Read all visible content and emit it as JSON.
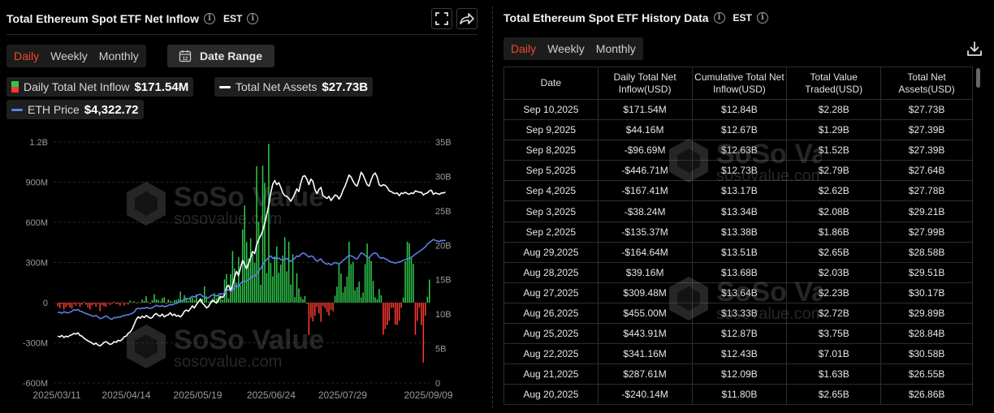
{
  "left_panel": {
    "title": "Total Ethereum Spot ETF Net Inflow",
    "timezone": "EST",
    "tabs": [
      {
        "label": "Daily",
        "active": true
      },
      {
        "label": "Weekly",
        "active": false
      },
      {
        "label": "Monthly",
        "active": false
      }
    ],
    "date_range_label": "Date Range",
    "calendar_day": "12",
    "legend": {
      "inflow_label": "Daily Total Net Inflow",
      "inflow_value": "$171.54M",
      "assets_label": "Total Net Assets",
      "assets_value": "$27.73B",
      "eth_label": "ETH Price",
      "eth_value": "$4,322.72"
    }
  },
  "watermark": {
    "brand": "SoSo Value",
    "url": "sosovalue.com"
  },
  "colors": {
    "positive": "#2ec84a",
    "negative": "#ff3b30",
    "assets_line": "#ffffff",
    "eth_line": "#5b7fe6",
    "accent": "#f0492d"
  },
  "chart_data": {
    "type": "bar",
    "title": "Total Ethereum Spot ETF Net Inflow",
    "left_axis": {
      "ticks": [
        "1.2B",
        "900M",
        "600M",
        "300M",
        "0",
        "-300M",
        "-600M"
      ],
      "range_m": [
        -600,
        1200
      ]
    },
    "right_axis": {
      "ticks": [
        "35B",
        "30B",
        "25B",
        "20B",
        "15B",
        "10B",
        "5B",
        "0"
      ],
      "range_b": [
        0,
        35
      ]
    },
    "x_ticks": [
      "2025/03/11",
      "2025/04/14",
      "2025/05/19",
      "2025/06/24",
      "2025/07/29",
      "2025/09/09"
    ],
    "start_date": "2025-03-11",
    "end_date": "2025-09-10",
    "series": [
      {
        "name": "Daily Total Net Inflow",
        "unit": "M USD",
        "values": [
          -28,
          -41,
          -12,
          -52,
          -34,
          -19,
          -38,
          -45,
          -11,
          -22,
          -8,
          -32,
          -15,
          4,
          -14,
          -36,
          -51,
          -21,
          -12,
          -31,
          -9,
          -63,
          -18,
          -26,
          -30,
          -5,
          -17,
          -8,
          6,
          -11,
          -12,
          -24,
          3,
          -21,
          -7,
          -14,
          16,
          3,
          10,
          -7,
          5,
          -3,
          22,
          14,
          48,
          7,
          -11,
          19,
          64,
          25,
          21,
          8,
          33,
          41,
          -9,
          24,
          13,
          6,
          18,
          20,
          27,
          83,
          10,
          56,
          30,
          13,
          44,
          36,
          18,
          62,
          14,
          19,
          31,
          122,
          47,
          8,
          15,
          30,
          71,
          35,
          61,
          46,
          23,
          174,
          214,
          31,
          212,
          386,
          256,
          149,
          340,
          127,
          546,
          726,
          453,
          332,
          481,
          362,
          297,
          1019,
          602,
          134,
          1024,
          895,
          221,
          1186,
          296,
          197,
          342,
          419,
          223,
          284,
          352,
          489,
          233,
          455,
          135,
          361,
          41,
          220,
          106,
          44,
          25,
          49,
          -11,
          -241,
          -112,
          -140,
          -98,
          -33,
          -81,
          -143,
          -26,
          -40,
          -71,
          -97,
          -53,
          -64,
          51,
          119,
          286,
          217,
          77,
          120,
          196,
          455,
          288,
          305,
          92,
          116,
          157,
          39,
          76,
          287,
          441,
          341,
          312,
          162,
          40,
          25,
          102,
          55,
          -240,
          -197,
          -167,
          -135,
          -39,
          -38,
          -164,
          -167,
          -135,
          -38,
          39,
          309,
          455,
          444,
          341,
          288,
          -240,
          -135,
          -38,
          -167,
          -447,
          -97,
          44,
          172
        ]
      },
      {
        "name": "Total Net Assets",
        "unit": "B USD",
        "values": [
          6.8,
          6.7,
          6.9,
          6.6,
          6.8,
          6.7,
          6.9,
          7.0,
          7.2,
          7.1,
          7.3,
          6.9,
          6.8,
          6.5,
          6.3,
          6.1,
          6.0,
          5.8,
          5.6,
          5.8,
          5.5,
          5.4,
          5.6,
          5.9,
          6.0,
          5.8,
          5.6,
          5.7,
          6.0,
          5.9,
          6.2,
          6.1,
          6.3,
          6.7,
          6.8,
          7.2,
          7.4,
          7.8,
          8.5,
          9.2,
          9.6,
          9.4,
          9.7,
          9.5,
          9.8,
          9.6,
          9.4,
          9.5,
          9.9,
          10.1,
          9.8,
          9.7,
          10.0,
          9.6,
          9.8,
          9.9,
          10.2,
          9.8,
          10.0,
          9.7,
          9.8,
          9.6,
          9.9,
          10.4,
          10.6,
          10.4,
          10.8,
          11.2,
          10.9,
          11.4,
          11.8,
          12.2,
          11.6,
          11.3,
          10.9,
          11.1,
          11.6,
          12.0,
          11.8,
          11.6,
          12.1,
          12.6,
          12.4,
          12.8,
          13.9,
          14.2,
          13.4,
          14.2,
          15.4,
          16.2,
          15.6,
          16.8,
          17.8,
          17.2,
          16.6,
          17.4,
          18.2,
          19.1,
          18.8,
          20.1,
          20.8,
          21.4,
          22.1,
          23.2,
          24.4,
          25.8,
          27.6,
          28.9,
          29.4,
          28.8,
          29.1,
          28.4,
          27.6,
          27.2,
          27.1,
          26.8,
          26.4,
          26.9,
          27.5,
          28.2,
          27.8,
          29.1,
          30.0,
          30.1,
          29.6,
          28.8,
          29.6,
          29.3,
          28.1,
          27.5,
          28.1,
          28.4,
          27.2,
          27.0,
          26.8,
          27.1,
          26.5,
          26.9,
          27.3,
          27.2,
          26.7,
          27.2,
          28.0,
          28.6,
          29.4,
          30.2,
          29.9,
          29.3,
          28.8,
          28.6,
          29.5,
          30.6,
          30.2,
          29.5,
          28.8,
          28.6,
          29.5,
          30.2,
          30.5,
          29.9,
          28.8,
          28.6,
          28.8,
          28.7,
          28.4,
          27.9,
          27.8,
          27.6,
          27.5,
          27.6,
          27.2,
          27.6,
          27.5,
          27.7,
          27.5,
          27.4,
          27.6,
          27.5,
          27.9,
          27.8,
          27.7,
          27.7,
          27.3,
          27.5,
          27.6,
          27.9,
          28.0,
          27.4,
          27.6,
          27.5,
          27.4,
          27.6,
          27.6,
          27.7
        ]
      },
      {
        "name": "ETH Price",
        "unit": "USD",
        "values": [
          1900,
          1920,
          1880,
          1930,
          1910,
          1890,
          1920,
          1950,
          2000,
          1980,
          2010,
          1950,
          1940,
          1900,
          1870,
          1850,
          1820,
          1800,
          1780,
          1810,
          1760,
          1700,
          1720,
          1760,
          1790,
          1750,
          1700,
          1680,
          1740,
          1730,
          1760,
          1750,
          1790,
          1800,
          1820,
          1830,
          1850,
          1880,
          1920,
          2020,
          2050,
          2030,
          2060,
          2040,
          2080,
          2060,
          2040,
          2070,
          2100,
          2150,
          2120,
          2110,
          2140,
          2100,
          2120,
          2140,
          2180,
          2160,
          2200,
          2210,
          2240,
          2280,
          2300,
          2350,
          2380,
          2360,
          2400,
          2450,
          2420,
          2470,
          2500,
          2520,
          2450,
          2420,
          2380,
          2400,
          2460,
          2500,
          2480,
          2460,
          2500,
          2540,
          2520,
          2560,
          2640,
          2680,
          2600,
          2660,
          2760,
          2800,
          2760,
          2880,
          2960,
          2940,
          2960,
          3000,
          3050,
          3140,
          3120,
          3200,
          3300,
          3380,
          3500,
          3600,
          3680,
          3750,
          3800,
          3720,
          3760,
          3700,
          3730,
          3680,
          3650,
          3700,
          3720,
          3650,
          3620,
          3680,
          3720,
          3800,
          3780,
          3850,
          3900,
          3880,
          3820,
          3760,
          3800,
          3780,
          3690,
          3620,
          3660,
          3700,
          3600,
          3560,
          3520,
          3550,
          3500,
          3540,
          3580,
          3560,
          3520,
          3580,
          3650,
          3700,
          3760,
          3820,
          3800,
          3780,
          3720,
          3700,
          3800,
          3900,
          3880,
          3820,
          3760,
          3740,
          3820,
          3880,
          3900,
          3860,
          3760,
          3720,
          3740,
          3700,
          3680,
          3620,
          3600,
          3580,
          3560,
          3580,
          3600,
          3620,
          3650,
          3680,
          3700,
          3720,
          3760,
          3800,
          3860,
          3900,
          3950,
          4000,
          4050,
          4100,
          4200,
          4250,
          4300,
          4350,
          4320,
          4300,
          4280,
          4320,
          4310,
          4323
        ]
      }
    ]
  },
  "right_panel": {
    "title": "Total Ethereum Spot ETF History Data",
    "timezone": "EST",
    "tabs": [
      {
        "label": "Daily",
        "active": true
      },
      {
        "label": "Weekly",
        "active": false
      },
      {
        "label": "Monthly",
        "active": false
      }
    ],
    "columns": [
      "Date",
      "Daily Total Net Inflow(USD)",
      "Cumulative Total Net Inflow(USD)",
      "Total Value Traded(USD)",
      "Total Net Assets(USD)"
    ],
    "rows": [
      [
        "Sep 10,2025",
        "$171.54M",
        "$12.84B",
        "$2.28B",
        "$27.73B"
      ],
      [
        "Sep 9,2025",
        "$44.16M",
        "$12.67B",
        "$1.29B",
        "$27.39B"
      ],
      [
        "Sep 8,2025",
        "-$96.69M",
        "$12.63B",
        "$1.52B",
        "$27.39B"
      ],
      [
        "Sep 5,2025",
        "-$446.71M",
        "$12.73B",
        "$2.79B",
        "$27.64B"
      ],
      [
        "Sep 4,2025",
        "-$167.41M",
        "$13.17B",
        "$2.62B",
        "$27.78B"
      ],
      [
        "Sep 3,2025",
        "-$38.24M",
        "$13.34B",
        "$2.08B",
        "$29.21B"
      ],
      [
        "Sep 2,2025",
        "-$135.37M",
        "$13.38B",
        "$1.86B",
        "$27.99B"
      ],
      [
        "Aug 29,2025",
        "-$164.64M",
        "$13.51B",
        "$2.65B",
        "$28.58B"
      ],
      [
        "Aug 28,2025",
        "$39.16M",
        "$13.68B",
        "$2.03B",
        "$29.51B"
      ],
      [
        "Aug 27,2025",
        "$309.48M",
        "$13.64B",
        "$2.23B",
        "$30.17B"
      ],
      [
        "Aug 26,2025",
        "$455.00M",
        "$13.33B",
        "$2.72B",
        "$29.89B"
      ],
      [
        "Aug 25,2025",
        "$443.91M",
        "$12.87B",
        "$3.75B",
        "$28.84B"
      ],
      [
        "Aug 22,2025",
        "$341.16M",
        "$12.43B",
        "$7.01B",
        "$30.58B"
      ],
      [
        "Aug 21,2025",
        "$287.61M",
        "$12.09B",
        "$1.63B",
        "$26.55B"
      ],
      [
        "Aug 20,2025",
        "-$240.14M",
        "$11.80B",
        "$2.65B",
        "$26.86B"
      ]
    ]
  }
}
